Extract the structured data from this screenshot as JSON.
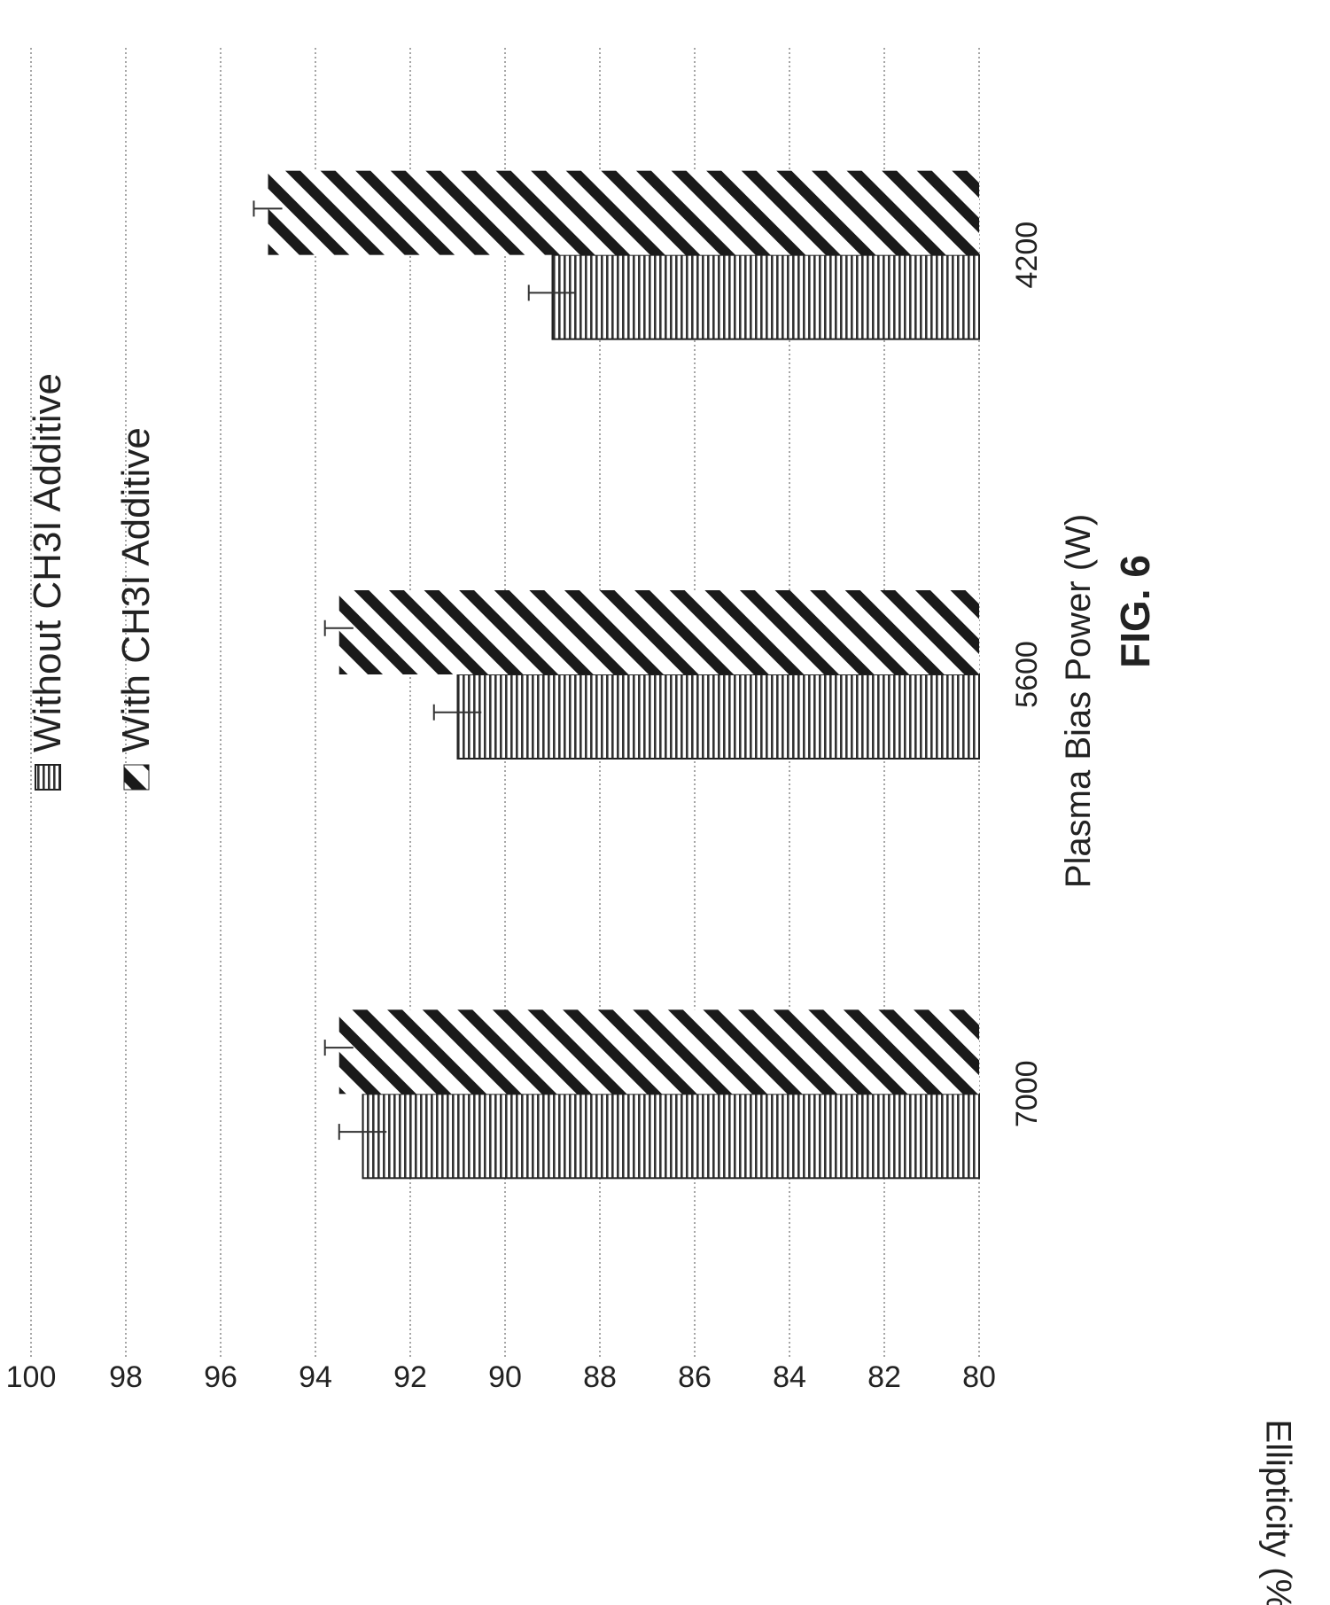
{
  "figure_label": "FIG. 6",
  "chart_data": {
    "type": "bar",
    "orientation": "vertical",
    "categories": [
      "7000",
      "5600",
      "4200"
    ],
    "series": [
      {
        "name": "Without CH3I Additive",
        "values": [
          93.0,
          91.0,
          89.0
        ],
        "error": [
          0.5,
          0.5,
          0.5
        ],
        "pattern": "horizontal-lines"
      },
      {
        "name": "With CH3I Additive",
        "values": [
          93.5,
          93.5,
          95.0
        ],
        "error": [
          0.3,
          0.3,
          0.3
        ],
        "pattern": "diagonal-hatch"
      }
    ],
    "xlabel": "Plasma Bias Power (W)",
    "ylabel": "Ellipticity (%)",
    "ylim": [
      80,
      100
    ],
    "yticks": [
      "80",
      "82",
      "84",
      "86",
      "88",
      "90",
      "92",
      "94",
      "96",
      "98",
      "100"
    ],
    "grid": true,
    "legend_position": "top"
  }
}
